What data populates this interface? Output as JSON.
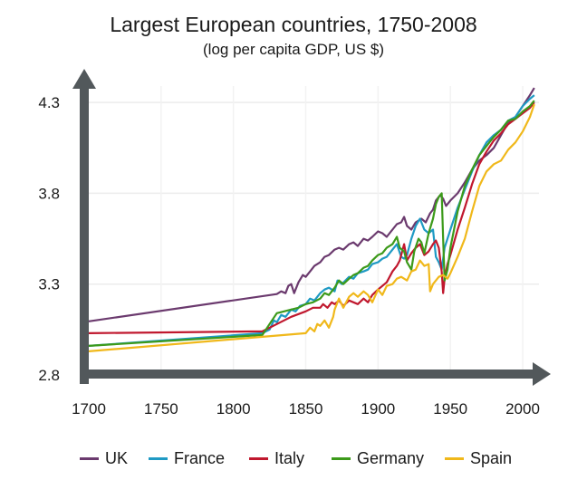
{
  "chart_data": {
    "type": "line",
    "title": "Largest European countries, 1750-2008",
    "subtitle": "(log per capita GDP, US $)",
    "xlabel": "",
    "ylabel": "",
    "xlim": [
      1700,
      2010
    ],
    "ylim": [
      2.8,
      4.4
    ],
    "xticks": [
      1700,
      1750,
      1800,
      1850,
      1900,
      1950,
      2000
    ],
    "xtick_labels": [
      "1700",
      "1750",
      "1800",
      "1850",
      "1900",
      "1950",
      "2000"
    ],
    "yticks": [
      2.8,
      3.3,
      3.8,
      4.3
    ],
    "ytick_labels": [
      "2.8",
      "3.3",
      "3.8",
      "4.3"
    ],
    "grid": true,
    "legend_position": "bottom",
    "series": [
      {
        "name": "UK",
        "color": "#6b3a6e",
        "x": [
          1700,
          1830,
          1833,
          1836,
          1838,
          1840,
          1842,
          1845,
          1848,
          1850,
          1853,
          1856,
          1860,
          1863,
          1866,
          1870,
          1873,
          1876,
          1880,
          1883,
          1886,
          1890,
          1893,
          1896,
          1900,
          1903,
          1906,
          1910,
          1913,
          1916,
          1918,
          1920,
          1923,
          1926,
          1930,
          1933,
          1936,
          1938,
          1940,
          1943,
          1945,
          1947,
          1950,
          1955,
          1960,
          1965,
          1970,
          1975,
          1980,
          1985,
          1990,
          1995,
          2000,
          2005,
          2008
        ],
        "y": [
          3.095,
          3.245,
          3.26,
          3.25,
          3.29,
          3.3,
          3.25,
          3.31,
          3.35,
          3.34,
          3.37,
          3.4,
          3.42,
          3.45,
          3.46,
          3.49,
          3.5,
          3.49,
          3.52,
          3.53,
          3.51,
          3.55,
          3.54,
          3.56,
          3.59,
          3.58,
          3.56,
          3.6,
          3.63,
          3.64,
          3.67,
          3.62,
          3.6,
          3.64,
          3.66,
          3.64,
          3.69,
          3.71,
          3.76,
          3.79,
          3.77,
          3.73,
          3.76,
          3.8,
          3.86,
          3.93,
          3.98,
          4.01,
          4.05,
          4.12,
          4.19,
          4.22,
          4.28,
          4.34,
          4.38
        ]
      },
      {
        "name": "France",
        "color": "#1f9ac4",
        "x": [
          1700,
          1820,
          1825,
          1828,
          1830,
          1833,
          1836,
          1840,
          1843,
          1846,
          1850,
          1853,
          1856,
          1860,
          1863,
          1866,
          1870,
          1872,
          1875,
          1880,
          1883,
          1886,
          1890,
          1893,
          1896,
          1900,
          1903,
          1906,
          1910,
          1913,
          1916,
          1918,
          1920,
          1923,
          1926,
          1929,
          1932,
          1935,
          1938,
          1940,
          1942,
          1944,
          1946,
          1950,
          1955,
          1960,
          1965,
          1970,
          1975,
          1980,
          1985,
          1990,
          1995,
          2000,
          2005,
          2008
        ],
        "y": [
          2.96,
          3.03,
          3.05,
          3.1,
          3.09,
          3.13,
          3.12,
          3.16,
          3.15,
          3.18,
          3.19,
          3.22,
          3.21,
          3.25,
          3.27,
          3.28,
          3.26,
          3.32,
          3.3,
          3.34,
          3.33,
          3.36,
          3.37,
          3.38,
          3.41,
          3.42,
          3.44,
          3.45,
          3.49,
          3.52,
          3.45,
          3.44,
          3.46,
          3.55,
          3.62,
          3.66,
          3.6,
          3.58,
          3.6,
          3.45,
          3.42,
          3.38,
          3.5,
          3.6,
          3.72,
          3.82,
          3.92,
          4.01,
          4.08,
          4.12,
          4.15,
          4.2,
          4.22,
          4.28,
          4.32,
          4.34
        ]
      },
      {
        "name": "Italy",
        "color": "#c0182e",
        "x": [
          1700,
          1820,
          1830,
          1840,
          1850,
          1855,
          1860,
          1862,
          1865,
          1868,
          1870,
          1873,
          1876,
          1880,
          1883,
          1886,
          1890,
          1893,
          1896,
          1900,
          1903,
          1906,
          1910,
          1913,
          1915,
          1918,
          1920,
          1923,
          1926,
          1929,
          1932,
          1935,
          1938,
          1940,
          1942,
          1944,
          1945,
          1946,
          1948,
          1950,
          1955,
          1960,
          1965,
          1970,
          1975,
          1980,
          1985,
          1990,
          1995,
          2000,
          2005,
          2008
        ],
        "y": [
          3.03,
          3.04,
          3.08,
          3.12,
          3.15,
          3.17,
          3.17,
          3.19,
          3.17,
          3.2,
          3.19,
          3.21,
          3.18,
          3.21,
          3.2,
          3.19,
          3.22,
          3.2,
          3.24,
          3.27,
          3.29,
          3.31,
          3.37,
          3.4,
          3.43,
          3.52,
          3.43,
          3.47,
          3.5,
          3.52,
          3.46,
          3.48,
          3.52,
          3.54,
          3.5,
          3.37,
          3.25,
          3.33,
          3.41,
          3.46,
          3.6,
          3.72,
          3.85,
          3.96,
          4.03,
          4.09,
          4.13,
          4.18,
          4.21,
          4.24,
          4.27,
          4.3
        ]
      },
      {
        "name": "Germany",
        "color": "#3c9a1a",
        "x": [
          1700,
          1820,
          1825,
          1830,
          1835,
          1840,
          1845,
          1850,
          1855,
          1860,
          1863,
          1866,
          1870,
          1873,
          1876,
          1880,
          1883,
          1886,
          1890,
          1893,
          1896,
          1900,
          1903,
          1906,
          1910,
          1913,
          1915,
          1918,
          1920,
          1923,
          1925,
          1928,
          1930,
          1932,
          1935,
          1938,
          1940,
          1942,
          1944,
          1945,
          1946,
          1948,
          1950,
          1955,
          1960,
          1965,
          1970,
          1975,
          1980,
          1985,
          1990,
          1995,
          2000,
          2005,
          2008
        ],
        "y": [
          2.96,
          3.02,
          3.08,
          3.14,
          3.15,
          3.16,
          3.17,
          3.19,
          3.2,
          3.22,
          3.25,
          3.24,
          3.28,
          3.32,
          3.3,
          3.33,
          3.35,
          3.36,
          3.39,
          3.4,
          3.43,
          3.46,
          3.47,
          3.5,
          3.52,
          3.56,
          3.5,
          3.48,
          3.42,
          3.38,
          3.48,
          3.55,
          3.53,
          3.47,
          3.58,
          3.66,
          3.74,
          3.78,
          3.8,
          3.55,
          3.32,
          3.38,
          3.5,
          3.7,
          3.84,
          3.93,
          4.01,
          4.06,
          4.11,
          4.15,
          4.2,
          4.21,
          4.25,
          4.28,
          4.31
        ]
      },
      {
        "name": "Spain",
        "color": "#f0b81a",
        "x": [
          1700,
          1850,
          1853,
          1856,
          1858,
          1860,
          1863,
          1866,
          1869,
          1870,
          1873,
          1876,
          1880,
          1883,
          1886,
          1890,
          1893,
          1896,
          1900,
          1903,
          1906,
          1910,
          1913,
          1916,
          1920,
          1923,
          1926,
          1929,
          1932,
          1935,
          1936,
          1938,
          1940,
          1942,
          1945,
          1948,
          1950,
          1955,
          1960,
          1965,
          1970,
          1975,
          1980,
          1985,
          1990,
          1995,
          2000,
          2005,
          2008
        ],
        "y": [
          2.93,
          3.03,
          3.06,
          3.04,
          3.08,
          3.07,
          3.1,
          3.06,
          3.12,
          3.16,
          3.22,
          3.17,
          3.23,
          3.25,
          3.23,
          3.26,
          3.24,
          3.2,
          3.27,
          3.24,
          3.29,
          3.3,
          3.33,
          3.34,
          3.32,
          3.37,
          3.38,
          3.43,
          3.4,
          3.41,
          3.26,
          3.3,
          3.32,
          3.34,
          3.35,
          3.33,
          3.36,
          3.45,
          3.55,
          3.7,
          3.84,
          3.92,
          3.96,
          3.98,
          4.04,
          4.08,
          4.14,
          4.22,
          4.29
        ]
      }
    ]
  }
}
